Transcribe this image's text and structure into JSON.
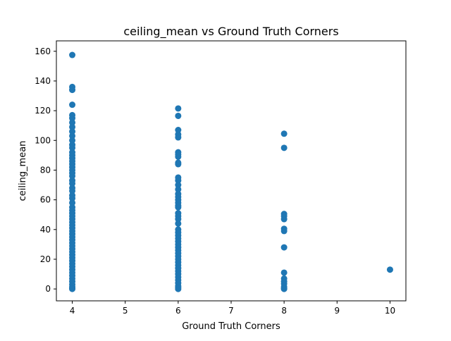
{
  "chart_data": {
    "type": "scatter",
    "title": "ceiling_mean vs Ground Truth Corners",
    "xlabel": "Ground Truth Corners",
    "ylabel": "ceiling_mean",
    "xlim": [
      3.7,
      10.3
    ],
    "ylim": [
      -8,
      167
    ],
    "xticks": [
      4,
      5,
      6,
      7,
      8,
      9,
      10
    ],
    "yticks": [
      0,
      20,
      40,
      60,
      80,
      100,
      120,
      140,
      160
    ],
    "grid": false,
    "marker_color": "#1f77b4",
    "points": [
      [
        4,
        157.5
      ],
      [
        4,
        136
      ],
      [
        4,
        134
      ],
      [
        4,
        124
      ],
      [
        4,
        117
      ],
      [
        4,
        115
      ],
      [
        4,
        112
      ],
      [
        4,
        109
      ],
      [
        4,
        106
      ],
      [
        4,
        103
      ],
      [
        4,
        100
      ],
      [
        4,
        97
      ],
      [
        4,
        95
      ],
      [
        4,
        92
      ],
      [
        4,
        90
      ],
      [
        4,
        88
      ],
      [
        4,
        86
      ],
      [
        4,
        84
      ],
      [
        4,
        82
      ],
      [
        4,
        80
      ],
      [
        4,
        78
      ],
      [
        4,
        76
      ],
      [
        4,
        73
      ],
      [
        4,
        71
      ],
      [
        4,
        68
      ],
      [
        4,
        66
      ],
      [
        4,
        63
      ],
      [
        4,
        61
      ],
      [
        4,
        58
      ],
      [
        4,
        55
      ],
      [
        4,
        53
      ],
      [
        4,
        51
      ],
      [
        4,
        49
      ],
      [
        4,
        47
      ],
      [
        4,
        45
      ],
      [
        4,
        43
      ],
      [
        4,
        41
      ],
      [
        4,
        39
      ],
      [
        4,
        37
      ],
      [
        4,
        35
      ],
      [
        4,
        33
      ],
      [
        4,
        31
      ],
      [
        4,
        29
      ],
      [
        4,
        27
      ],
      [
        4,
        25
      ],
      [
        4,
        23
      ],
      [
        4,
        21
      ],
      [
        4,
        19
      ],
      [
        4,
        17
      ],
      [
        4,
        15
      ],
      [
        4,
        13
      ],
      [
        4,
        11
      ],
      [
        4,
        9
      ],
      [
        4,
        7
      ],
      [
        4,
        5
      ],
      [
        4,
        3
      ],
      [
        4,
        1.5
      ],
      [
        4,
        0.5
      ],
      [
        4,
        0
      ],
      [
        6,
        121.5
      ],
      [
        6,
        116.5
      ],
      [
        6,
        107
      ],
      [
        6,
        104
      ],
      [
        6,
        102
      ],
      [
        6,
        92
      ],
      [
        6,
        90.5
      ],
      [
        6,
        89
      ],
      [
        6,
        85
      ],
      [
        6,
        84
      ],
      [
        6,
        75
      ],
      [
        6,
        73
      ],
      [
        6,
        70
      ],
      [
        6,
        67
      ],
      [
        6,
        64
      ],
      [
        6,
        62
      ],
      [
        6,
        60
      ],
      [
        6,
        58
      ],
      [
        6,
        56
      ],
      [
        6,
        55
      ],
      [
        6,
        51
      ],
      [
        6,
        49
      ],
      [
        6,
        47
      ],
      [
        6,
        44
      ],
      [
        6,
        40
      ],
      [
        6,
        38
      ],
      [
        6,
        36
      ],
      [
        6,
        34
      ],
      [
        6,
        32
      ],
      [
        6,
        30
      ],
      [
        6,
        28
      ],
      [
        6,
        26
      ],
      [
        6,
        24
      ],
      [
        6,
        22
      ],
      [
        6,
        20
      ],
      [
        6,
        18
      ],
      [
        6,
        16
      ],
      [
        6,
        14
      ],
      [
        6,
        12
      ],
      [
        6,
        10
      ],
      [
        6,
        8
      ],
      [
        6,
        6
      ],
      [
        6,
        4
      ],
      [
        6,
        2
      ],
      [
        6,
        1
      ],
      [
        6,
        0
      ],
      [
        8,
        104.5
      ],
      [
        8,
        95
      ],
      [
        8,
        50.5
      ],
      [
        8,
        49
      ],
      [
        8,
        47
      ],
      [
        8,
        40.5
      ],
      [
        8,
        39
      ],
      [
        8,
        28
      ],
      [
        8,
        11
      ],
      [
        8,
        7
      ],
      [
        8,
        5
      ],
      [
        8,
        3.5
      ],
      [
        8,
        1.5
      ],
      [
        8,
        0.5
      ],
      [
        8,
        0
      ],
      [
        10,
        13
      ]
    ]
  }
}
